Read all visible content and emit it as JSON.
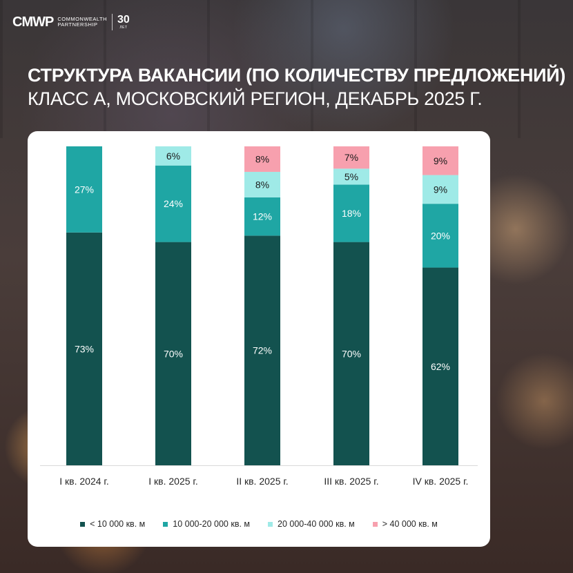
{
  "brand": {
    "mark": "CMWP",
    "name_line1": "COMMONWEALTH",
    "name_line2": "PARTNERSHIP",
    "anniversary_number": "30",
    "anniversary_suffix": "ЛЕТ"
  },
  "header": {
    "title": "СТРУКТУРА ВАКАНСИИ (ПО КОЛИЧЕСТВУ ПРЕДЛОЖЕНИЙ)",
    "subtitle": "КЛАСС А, МОСКОВСКИЙ РЕГИОН, ДЕКАБРЬ 2025 Г."
  },
  "chart_data": {
    "type": "bar",
    "stacked": true,
    "percent": true,
    "categories": [
      "I кв. 2024 г.",
      "I кв. 2025 г.",
      "II кв. 2025 г.",
      "III кв. 2025 г.",
      "IV кв. 2025 г."
    ],
    "series": [
      {
        "name": "< 10 000 кв. м",
        "color": "#13524F",
        "values": [
          73,
          70,
          72,
          70,
          62
        ]
      },
      {
        "name": "10 000-20 000 кв. м",
        "color": "#1FA6A4",
        "values": [
          27,
          24,
          12,
          18,
          20
        ]
      },
      {
        "name": "20 000-40 000 кв. м",
        "color": "#9FEAE7",
        "values": [
          0,
          6,
          8,
          5,
          9
        ]
      },
      {
        "name": "> 40 000 кв. м",
        "color": "#F7A0AE",
        "values": [
          0,
          0,
          8,
          7,
          9
        ]
      }
    ],
    "data_labels": [
      [
        "73%",
        "27%",
        "",
        ""
      ],
      [
        "70%",
        "24%",
        "6%",
        ""
      ],
      [
        "72%",
        "12%",
        "8%",
        "8%"
      ],
      [
        "70%",
        "18%",
        "5%",
        "7%"
      ],
      [
        "62%",
        "20%",
        "9%",
        "9%"
      ]
    ],
    "label_colors": [
      "#FFFFFF",
      "#FFFFFF",
      "#1a1a1a",
      "#1a1a1a"
    ],
    "ylim": [
      0,
      100
    ],
    "legend_position": "bottom",
    "grid": false
  }
}
